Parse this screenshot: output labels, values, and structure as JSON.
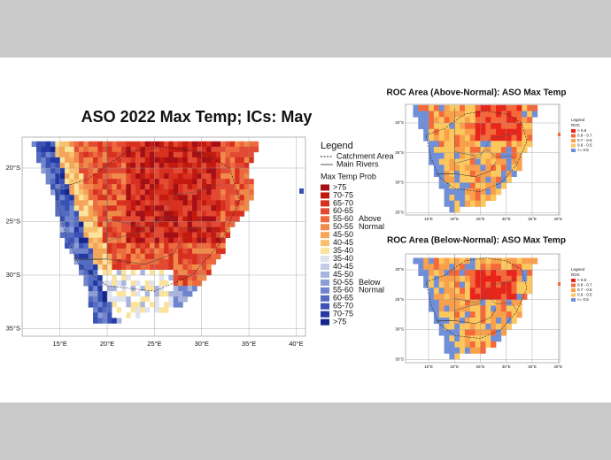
{
  "main_map": {
    "title": "ASO 2022 Max Temp; ICs: May",
    "lat_labels": [
      "20°S",
      "25°S",
      "30°S",
      "35°S"
    ],
    "lon_labels": [
      "15°E",
      "20°E",
      "25°E",
      "30°E",
      "35°E",
      "40°E"
    ],
    "legend": {
      "title": "Legend",
      "catchment": "Catchment Area",
      "rivers": "Main Rivers",
      "prob_title": "Max Temp Prob",
      "above": [
        "Above",
        "Normal"
      ],
      "below": [
        "Below",
        "Normal"
      ],
      "entries": [
        {
          "label": ">75",
          "color": "#a50f15"
        },
        {
          "label": "70-75",
          "color": "#c4190e"
        },
        {
          "label": "65-70",
          "color": "#d7301f"
        },
        {
          "label": "60-65",
          "color": "#e34a33"
        },
        {
          "label": "55-60",
          "color": "#ec6a3e"
        },
        {
          "label": "50-55",
          "color": "#f08a4b"
        },
        {
          "label": "45-50",
          "color": "#f4a55a"
        },
        {
          "label": "40-45",
          "color": "#f8c16f"
        },
        {
          "label": "35-40",
          "color": "#fbe39c"
        },
        {
          "label": "35-40",
          "color": "#dfe3f0"
        },
        {
          "label": "40-45",
          "color": "#c3cbe6"
        },
        {
          "label": "45-50",
          "color": "#a8b4de"
        },
        {
          "label": "50-55",
          "color": "#8c9dd6"
        },
        {
          "label": "55-60",
          "color": "#6f84cc"
        },
        {
          "label": "60-65",
          "color": "#546bc2"
        },
        {
          "label": "65-70",
          "color": "#3a52b5"
        },
        {
          "label": "70-75",
          "color": "#2539a3"
        },
        {
          "label": ">75",
          "color": "#14258c"
        }
      ]
    }
  },
  "roc_maps": [
    {
      "title": "ROC Area (Above-Normal): ASO Max Temp",
      "lat_labels": [
        "20°S",
        "25°S",
        "30°S",
        "35°S"
      ],
      "lon_labels": [
        "15°E",
        "20°E",
        "25°E",
        "30°E",
        "35°E",
        "40°E"
      ],
      "legend": {
        "title": "Legend",
        "subtitle": "ROC",
        "entries": [
          {
            "label": "> 0.8",
            "color": "#e8251a"
          },
          {
            "label": "0.8 - 0.7",
            "color": "#f4683a"
          },
          {
            "label": "0.7 - 0.6",
            "color": "#f9a04c"
          },
          {
            "label": "0.6 - 0.5",
            "color": "#fcc75e"
          },
          {
            "label": "<= 0.5",
            "color": "#6f8fd8"
          }
        ]
      }
    },
    {
      "title": "ROC Area (Below-Normal): ASO Max Temp",
      "lat_labels": [
        "20°S",
        "25°S",
        "30°S",
        "35°S"
      ],
      "lon_labels": [
        "15°E",
        "20°E",
        "25°E",
        "30°E",
        "35°E",
        "40°E"
      ],
      "legend": {
        "title": "Legend",
        "subtitle": "ROC",
        "entries": [
          {
            "label": "> 0.8",
            "color": "#e8251a"
          },
          {
            "label": "0.8 - 0.7",
            "color": "#f4683a"
          },
          {
            "label": "0.7 - 0.6",
            "color": "#f9a04c"
          },
          {
            "label": "0.6 - 0.5",
            "color": "#fcc75e"
          },
          {
            "label": "<= 0.5",
            "color": "#6f8fd8"
          }
        ]
      }
    }
  ]
}
